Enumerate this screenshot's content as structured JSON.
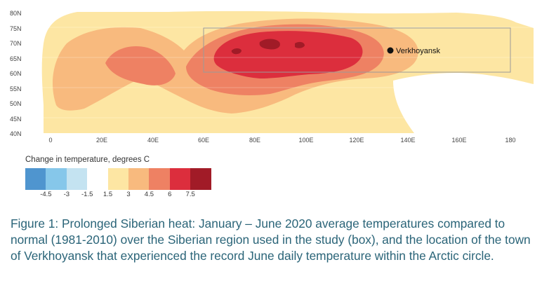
{
  "map": {
    "latitudes": [
      "80N",
      "75N",
      "70N",
      "65N",
      "60N",
      "55N",
      "50N",
      "45N",
      "40N"
    ],
    "longitudes": [
      "0",
      "20E",
      "40E",
      "60E",
      "80E",
      "100E",
      "120E",
      "140E",
      "160E",
      "180"
    ],
    "study_region": {
      "lon_min": 60,
      "lon_max": 180,
      "lat_min": 60,
      "lat_max": 75
    },
    "town": {
      "name": "Verkhoyansk",
      "lon": 133.4,
      "lat": 67.5
    }
  },
  "legend": {
    "title": "Change in temperature, degrees C",
    "classes": [
      {
        "color": "#4f95cf"
      },
      {
        "color": "#86c7ea"
      },
      {
        "color": "#c4e3f1"
      },
      {
        "color": "#ffffff"
      },
      {
        "color": "#fde6a3"
      },
      {
        "color": "#f8ba7e"
      },
      {
        "color": "#ee8163"
      },
      {
        "color": "#dc2e3d"
      },
      {
        "color": "#a11b27"
      }
    ],
    "ticks": [
      "-4.5",
      "-3",
      "-1.5",
      "1.5",
      "3",
      "4.5",
      "6",
      "7.5"
    ]
  },
  "caption": "Figure 1: Prolonged Siberian heat: January – June 2020 average temperatures compared to normal (1981-2010) over the Siberian region used in the study (box), and the location of the town of Verkhoyansk that experienced the record June daily temperature within the Arctic circle."
}
